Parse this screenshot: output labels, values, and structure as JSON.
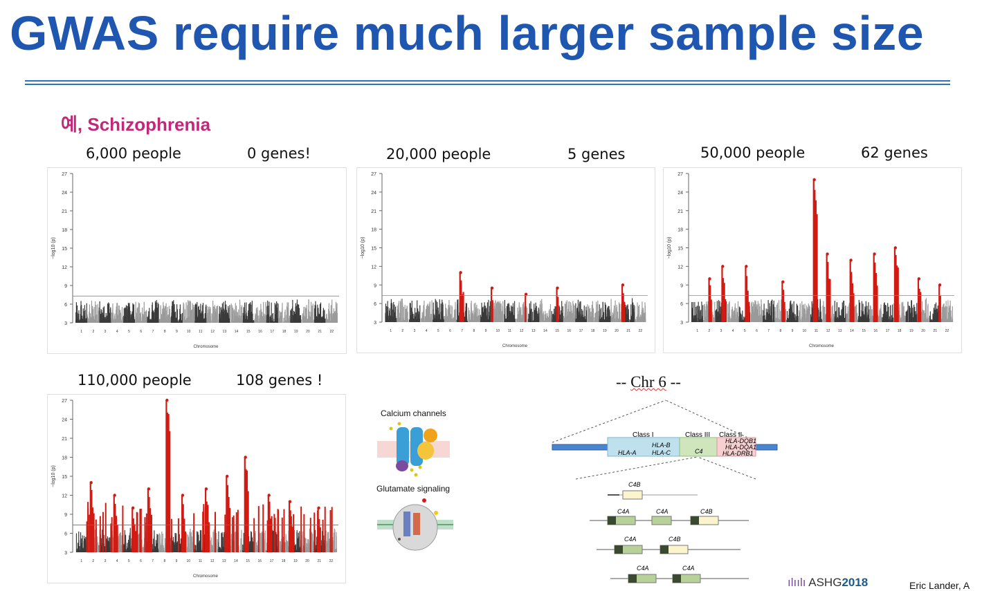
{
  "title": "GWAS require much larger sample size",
  "subtitle": "예, Schizophrenia",
  "panels": [
    {
      "people": "6,000 people",
      "genes": "0 genes!"
    },
    {
      "people": "20,000 people",
      "genes": "5 genes"
    },
    {
      "people": "50,000 people",
      "genes": "62 genes"
    },
    {
      "people": "110,000 people",
      "genes": "108 genes !"
    }
  ],
  "manhattan": {
    "ylabel": "−log10 (p)",
    "xlabel": "Chromosome",
    "yticks": [
      "27",
      "24",
      "21",
      "18",
      "15",
      "12",
      "9",
      "6",
      "3"
    ],
    "chromosomes": [
      "1",
      "2",
      "3",
      "4",
      "5",
      "6",
      "7",
      "8",
      "9",
      "10",
      "11",
      "12",
      "13",
      "14",
      "15",
      "16",
      "17",
      "18",
      "19",
      "20",
      "21",
      "22"
    ],
    "significance_threshold": 7.3
  },
  "pathways": {
    "calcium": "Calcium channels",
    "glutamate": "Glutamate signaling"
  },
  "chr6": {
    "heading_prefix": "-- ",
    "heading_word": "Chr 6",
    "heading_suffix": " --",
    "class1": "Class I",
    "class3": "Class III",
    "class2": "Class II",
    "hla_b": "HLA-B",
    "hla_c": "HLA-C",
    "hla_a": "HLA-A",
    "c4": "C4",
    "hla_dqb1": "HLA-DQB1",
    "hla_dqa1": "HLA-DQA1",
    "hla_drb1": "HLA-DRB1",
    "c4a": "C4A",
    "c4b": "C4B"
  },
  "footer": {
    "logo_text": "ASHG",
    "logo_year": "2018",
    "credit": "Eric Lander, A"
  },
  "colors": {
    "title": "#1f56b0",
    "subtitle": "#c2277a",
    "hit": "#d11a12",
    "dark": "#3a3a3a",
    "light": "#9a9a9a"
  }
}
